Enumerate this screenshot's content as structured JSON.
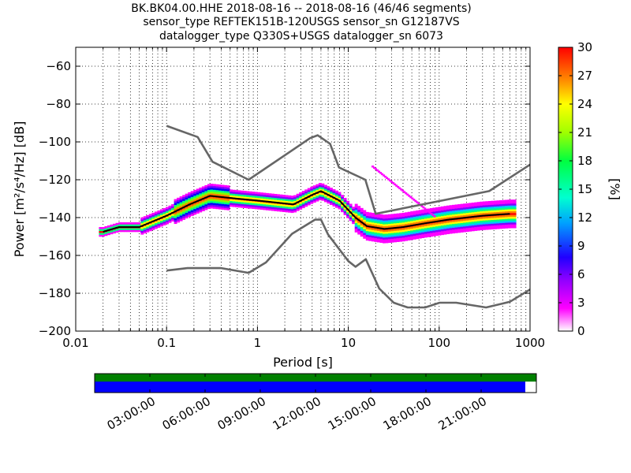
{
  "title": {
    "line1": "BK.BK04.00.HHE   2018-08-16 -- 2018-08-16  (46/46 segments)",
    "line2": "sensor_type REFTEK151B-120USGS sensor_sn G12187VS",
    "line3": "datalogger_type Q330S+USGS datalogger_sn 6073"
  },
  "chart_data": [
    {
      "type": "heatmap",
      "xlabel": "Period [s]",
      "ylabel": "Power [m²/s⁴/Hz] [dB]",
      "xscale": "log",
      "xlim": [
        0.01,
        1000
      ],
      "ylim": [
        -200,
        -50
      ],
      "xticks": [
        {
          "v": 0.01,
          "label": "0.01"
        },
        {
          "v": 0.1,
          "label": "0.1"
        },
        {
          "v": 1,
          "label": "1"
        },
        {
          "v": 10,
          "label": "10"
        },
        {
          "v": 100,
          "label": "100"
        },
        {
          "v": 1000,
          "label": "1000"
        }
      ],
      "yticks": [
        {
          "v": -60,
          "label": "−60"
        },
        {
          "v": -80,
          "label": "−80"
        },
        {
          "v": -100,
          "label": "−100"
        },
        {
          "v": -120,
          "label": "−120"
        },
        {
          "v": -140,
          "label": "−140"
        },
        {
          "v": -160,
          "label": "−160"
        },
        {
          "v": -180,
          "label": "−180"
        },
        {
          "v": -200,
          "label": "−200"
        }
      ],
      "grid": true,
      "colorbar": {
        "label": "[%]",
        "range": [
          0,
          30
        ],
        "ticks": [
          {
            "v": 0,
            "label": "0"
          },
          {
            "v": 3,
            "label": "3"
          },
          {
            "v": 6,
            "label": "6"
          },
          {
            "v": 9,
            "label": "9"
          },
          {
            "v": 12,
            "label": "12"
          },
          {
            "v": 15,
            "label": "15"
          },
          {
            "v": 18,
            "label": "18"
          },
          {
            "v": 21,
            "label": "21"
          },
          {
            "v": 24,
            "label": "24"
          },
          {
            "v": 27,
            "label": "27"
          },
          {
            "v": 30,
            "label": "30"
          }
        ],
        "colors": [
          "#ffffff",
          "#ff00ff",
          "#8000ff",
          "#0000ff",
          "#00c8ff",
          "#00ff80",
          "#80ff00",
          "#ffff00",
          "#ff8000",
          "#ff0000"
        ]
      },
      "series": [
        {
          "name": "",
          "role": "high-noise-model",
          "color": "#666666",
          "points": [
            [
              0.1,
              -91.5
            ],
            [
              0.22,
              -97.4
            ],
            [
              0.32,
              -110.5
            ],
            [
              0.8,
              -120
            ],
            [
              3.8,
              -98
            ],
            [
              4.6,
              -96.5
            ],
            [
              6.3,
              -101
            ],
            [
              7.9,
              -113.5
            ],
            [
              15.4,
              -120
            ],
            [
              20,
              -138
            ],
            [
              354.8,
              -126
            ],
            [
              1000,
              -112
            ]
          ]
        },
        {
          "name": "",
          "role": "low-noise-model",
          "color": "#666666",
          "points": [
            [
              0.1,
              -168
            ],
            [
              0.17,
              -166.7
            ],
            [
              0.4,
              -166.7
            ],
            [
              0.8,
              -169.2
            ],
            [
              1.24,
              -163.7
            ],
            [
              2.4,
              -148.6
            ],
            [
              4.3,
              -141.1
            ],
            [
              5,
              -141.1
            ],
            [
              6,
              -149
            ],
            [
              10,
              -163
            ],
            [
              12,
              -166
            ],
            [
              15.6,
              -162
            ],
            [
              21.9,
              -177.5
            ],
            [
              31.6,
              -185
            ],
            [
              45,
              -187.5
            ],
            [
              70,
              -187.5
            ],
            [
              101,
              -185
            ],
            [
              154,
              -185
            ],
            [
              328.4,
              -187.5
            ],
            [
              600,
              -184.5
            ],
            [
              1000,
              -178
            ]
          ]
        },
        {
          "name": "",
          "role": "mode",
          "color": "#000000",
          "points": [
            [
              0.02,
              -147.5
            ],
            [
              0.03,
              -145
            ],
            [
              0.05,
              -145
            ],
            [
              0.1,
              -139
            ],
            [
              0.18,
              -133
            ],
            [
              0.3,
              -128.5
            ],
            [
              0.6,
              -130
            ],
            [
              1,
              -131
            ],
            [
              2.5,
              -133
            ],
            [
              4,
              -128
            ],
            [
              5,
              -126
            ],
            [
              8,
              -131
            ],
            [
              12,
              -140
            ],
            [
              16,
              -144.5
            ],
            [
              25,
              -146
            ],
            [
              40,
              -145
            ],
            [
              70,
              -143
            ],
            [
              130,
              -141
            ],
            [
              300,
              -139
            ],
            [
              600,
              -138
            ]
          ]
        }
      ]
    },
    {
      "type": "timeline",
      "time_labels": [
        "03:00:00",
        "06:00:00",
        "09:00:00",
        "12:00:00",
        "15:00:00",
        "18:00:00",
        "21:00:00"
      ],
      "time_label_hours": [
        3,
        6,
        9,
        12,
        15,
        18,
        21
      ],
      "range_hours": [
        0,
        24
      ],
      "bars": [
        {
          "name": "",
          "color": "#008000",
          "start_h": 0,
          "end_h": 24
        },
        {
          "name": "",
          "color": "#0000ff",
          "start_h": 0,
          "end_h": 23.4
        }
      ]
    }
  ]
}
